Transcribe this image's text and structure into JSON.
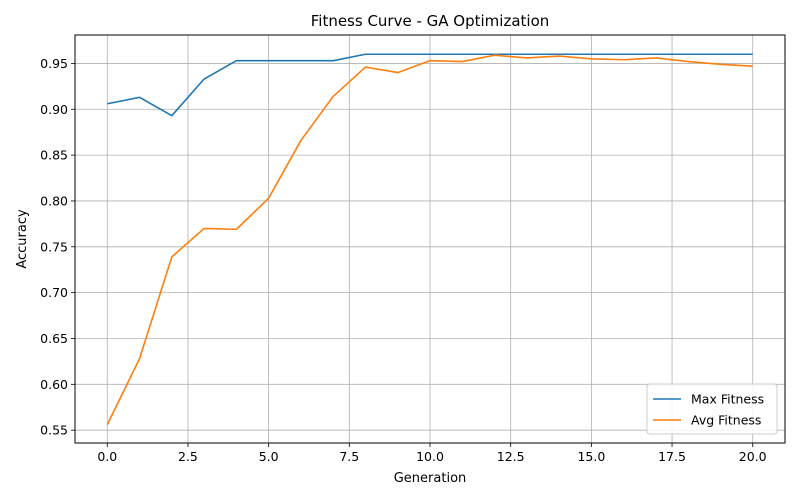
{
  "chart_data": {
    "type": "line",
    "title": "Fitness Curve - GA Optimization",
    "xlabel": "Generation",
    "ylabel": "Accuracy",
    "xlim": [
      -1,
      21
    ],
    "ylim": [
      0.536,
      0.981
    ],
    "xticks": [
      0,
      2.5,
      5,
      7.5,
      10,
      12.5,
      15,
      17.5,
      20
    ],
    "xtick_labels": [
      "0.0",
      "2.5",
      "5.0",
      "7.5",
      "10.0",
      "12.5",
      "15.0",
      "17.5",
      "20.0"
    ],
    "yticks": [
      0.55,
      0.6,
      0.65,
      0.7,
      0.75,
      0.8,
      0.85,
      0.9,
      0.95
    ],
    "ytick_labels": [
      "0.55",
      "0.60",
      "0.65",
      "0.70",
      "0.75",
      "0.80",
      "0.85",
      "0.90",
      "0.95"
    ],
    "grid": true,
    "legend_position": "bottom-right",
    "x": [
      0,
      1,
      2,
      3,
      4,
      5,
      6,
      7,
      8,
      9,
      10,
      11,
      12,
      13,
      14,
      15,
      16,
      17,
      18,
      19,
      20
    ],
    "series": [
      {
        "name": "Max Fitness",
        "color": "#1f77b4",
        "values": [
          0.906,
          0.913,
          0.893,
          0.933,
          0.953,
          0.953,
          0.953,
          0.953,
          0.96,
          0.96,
          0.96,
          0.96,
          0.96,
          0.96,
          0.96,
          0.96,
          0.96,
          0.96,
          0.96,
          0.96,
          0.96
        ]
      },
      {
        "name": "Avg Fitness",
        "color": "#ff7f0e",
        "values": [
          0.556,
          0.628,
          0.739,
          0.77,
          0.769,
          0.803,
          0.866,
          0.914,
          0.946,
          0.94,
          0.953,
          0.952,
          0.959,
          0.956,
          0.958,
          0.955,
          0.954,
          0.956,
          0.952,
          0.949,
          0.947
        ]
      }
    ]
  }
}
